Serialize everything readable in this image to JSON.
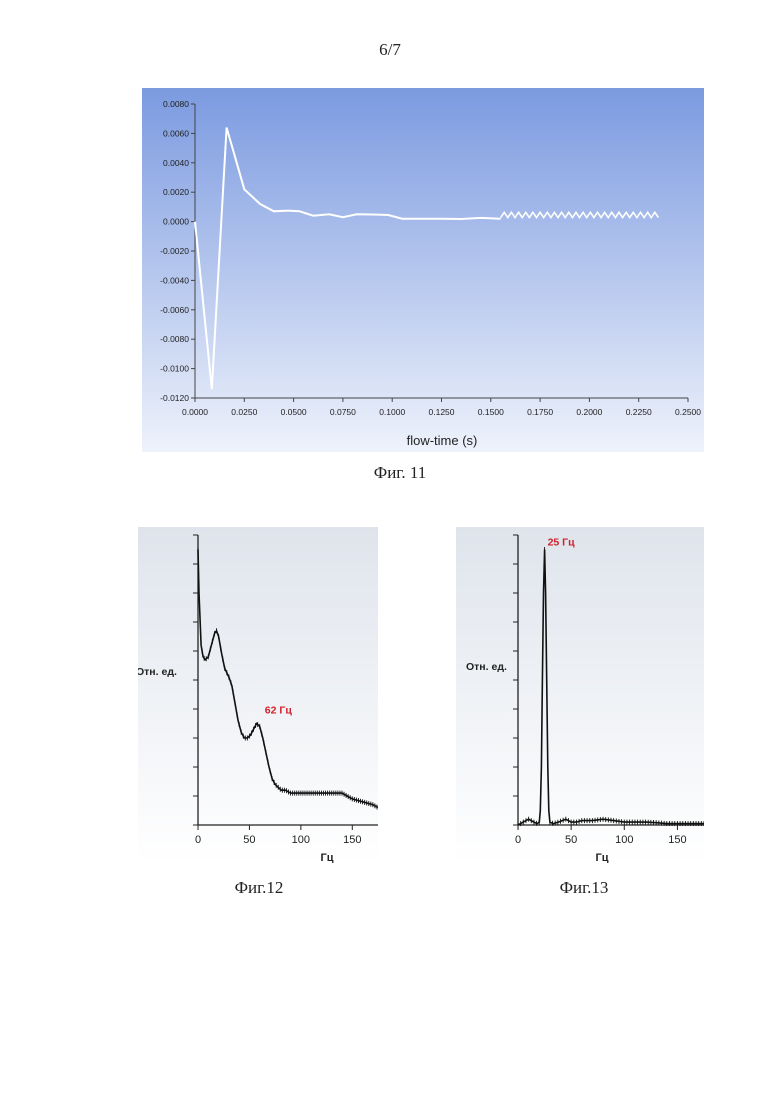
{
  "page_number": "6/7",
  "captions": {
    "fig11": "Фиг. 11",
    "fig12": "Фиг.12",
    "fig13": "Фиг.13"
  },
  "chart_data": [
    {
      "type": "line",
      "title": "",
      "xlabel": "flow-time (s)",
      "ylabel": "",
      "xlim": [
        0,
        0.25
      ],
      "ylim": [
        -0.012,
        0.008
      ],
      "x_ticks": [
        "0.0000",
        "0.0250",
        "0.0500",
        "0.0750",
        "0.1000",
        "0.1250",
        "0.1500",
        "0.1750",
        "0.2000",
        "0.2250",
        "0.2500"
      ],
      "y_ticks": [
        "0.0080",
        "0.0060",
        "0.0040",
        "0.0020",
        "0.0000",
        "-0.0020",
        "-0.0040",
        "-0.0060",
        "-0.0080",
        "-0.0100",
        "-0.0120"
      ],
      "grid": false,
      "series": [
        {
          "x": [
            0.0,
            0.0085,
            0.016,
            0.025,
            0.033,
            0.04,
            0.047,
            0.053,
            0.06,
            0.068,
            0.075,
            0.082,
            0.09,
            0.098,
            0.105,
            0.115,
            0.125,
            0.135,
            0.145,
            0.155
          ],
          "y": [
            0.0,
            -0.0114,
            0.0064,
            0.0022,
            0.0012,
            0.0007,
            0.00075,
            0.0007,
            0.0004,
            0.0005,
            0.0003,
            0.0005,
            0.00048,
            0.00045,
            0.0002,
            0.0002,
            0.0002,
            0.00018,
            0.00025,
            0.0002
          ]
        }
      ],
      "oscillation": {
        "x_start": 0.155,
        "x_end": 0.235,
        "center": 0.00045,
        "amplitude": 0.00018,
        "cycles": 22
      },
      "colors": {
        "background_top": "#7b9ae0",
        "background_bottom": "#eef2fb",
        "line": "#ffffff"
      }
    },
    {
      "type": "line",
      "title": "",
      "xlabel": "Гц",
      "ylabel": "Отн. ед.",
      "xlim": [
        0,
        175
      ],
      "ylim": [
        0,
        100
      ],
      "x_ticks": [
        "0",
        "50",
        "100",
        "150"
      ],
      "x_tick_values": [
        0,
        50,
        100,
        150
      ],
      "annotation": {
        "text": "62 Гц",
        "x": 62,
        "y": 37,
        "color": "#d0202a"
      },
      "series": [
        {
          "x": [
            0,
            1,
            3,
            5,
            7,
            10,
            13,
            16,
            18,
            20,
            23,
            26,
            30,
            33,
            36,
            39,
            42,
            45,
            48,
            51,
            54,
            57,
            60,
            63,
            66,
            69,
            72,
            75,
            78,
            81,
            85,
            90,
            95,
            100,
            110,
            120,
            130,
            135,
            140,
            145,
            150,
            160,
            170,
            175
          ],
          "y": [
            95,
            80,
            62,
            58,
            57,
            58,
            62,
            66,
            67,
            65,
            59,
            54,
            51,
            48,
            42,
            36,
            32,
            30,
            30,
            31,
            33,
            35,
            34,
            30,
            25,
            20,
            16,
            14,
            13,
            12,
            12,
            11,
            11,
            11,
            11,
            11,
            11,
            11,
            11,
            10,
            9,
            8,
            7,
            6
          ]
        }
      ]
    },
    {
      "type": "line",
      "title": "",
      "xlabel": "Гц",
      "ylabel": "Отн. ед.",
      "xlim": [
        0,
        175
      ],
      "ylim": [
        0,
        100
      ],
      "x_ticks": [
        "0",
        "50",
        "100",
        "150"
      ],
      "x_tick_values": [
        0,
        50,
        100,
        150
      ],
      "annotation": {
        "text": "25 Гц",
        "x": 25,
        "y": 95,
        "color": "#d0202a"
      },
      "series": [
        {
          "x": [
            0,
            5,
            10,
            15,
            18,
            20,
            21,
            22,
            23,
            24,
            25,
            26,
            27,
            28,
            29,
            30,
            33,
            38,
            45,
            50,
            55,
            60,
            70,
            80,
            90,
            100,
            110,
            120,
            130,
            140,
            150,
            160,
            170,
            175
          ],
          "y": [
            0,
            1,
            2,
            1,
            0.5,
            1,
            5,
            20,
            50,
            80,
            95,
            80,
            50,
            20,
            5,
            1,
            0.5,
            1,
            2,
            1,
            1,
            1.5,
            1.5,
            2,
            1.5,
            1,
            1,
            1,
            0.8,
            0.5,
            0.5,
            0.5,
            0.5,
            0.5
          ]
        }
      ]
    }
  ]
}
